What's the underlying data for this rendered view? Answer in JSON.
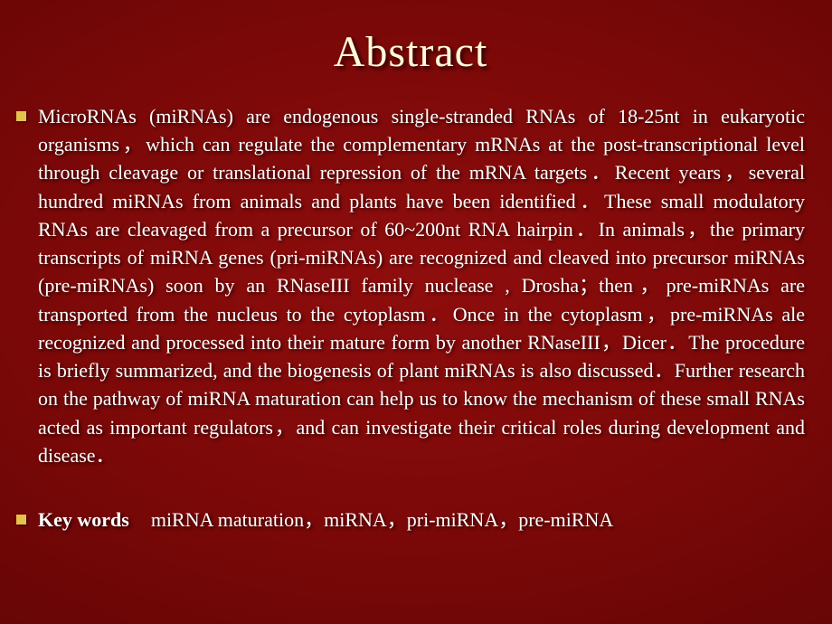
{
  "slide": {
    "title": "Abstract",
    "title_color": "#fff9d8",
    "title_fontsize": 48,
    "title_font": "Comic Sans MS",
    "background": {
      "type": "radial-gradient",
      "inner": "#8f0d0d",
      "mid": "#7a0808",
      "outer": "#3d0202"
    },
    "bullet": {
      "shape": "square",
      "color": "#e6c24d",
      "size": 11
    },
    "body_fontsize": 22,
    "body_line_height": 1.42,
    "body_color": "#ffffff",
    "text_shadow": "2px 2px 3px rgba(0,0,0,0.7)",
    "items": [
      {
        "text": "MicroRNAs (miRNAs) are endogenous single-stranded RNAs of 18-25nt in eukaryotic organisms，which can regulate the complementary mRNAs at the post-transcriptional level through cleavage or translational repression of the mRNA targets．Recent years，several hundred miRNAs from animals and plants have been identified．These small modulatory RNAs are cleavaged from a precursor of 60~200nt RNA hairpin．In animals，the primary transcripts of miRNA genes (pri-miRNAs) are recognized and cleaved into precursor miRNAs (pre-miRNAs) soon by an RNaseIII family nuclease , Drosha；then，pre-miRNAs are transported from the nucleus to the cytoplasm．Once in the cytoplasm，pre-miRNAs ale recognized and processed into their mature form by another RNaseIII，Dicer．The procedure is briefly summarized, and the biogenesis of plant miRNAs is also discussed．Further research on the pathway of miRNA maturation can help us to know the mechanism of these small RNAs acted as important regulators，and can investigate their critical roles during development and disease．"
      },
      {
        "keywords_label": "Key words",
        "keywords_text": "miRNA maturation，miRNA，pri-miRNA，pre-miRNA"
      }
    ]
  }
}
